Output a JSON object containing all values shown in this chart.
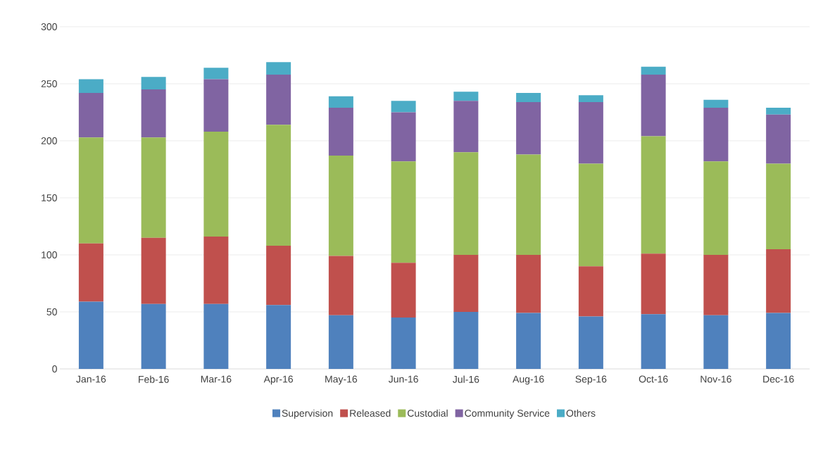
{
  "chart_data": {
    "type": "bar",
    "stacked": true,
    "categories": [
      "Jan-16",
      "Feb-16",
      "Mar-16",
      "Apr-16",
      "May-16",
      "Jun-16",
      "Jul-16",
      "Aug-16",
      "Sep-16",
      "Oct-16",
      "Nov-16",
      "Dec-16"
    ],
    "series": [
      {
        "name": "Supervision",
        "color": "#4f81bd",
        "values": [
          59,
          57,
          57,
          56,
          47,
          45,
          50,
          49,
          46,
          48,
          47,
          49
        ]
      },
      {
        "name": "Released",
        "color": "#c0504d",
        "values": [
          51,
          58,
          59,
          52,
          52,
          48,
          50,
          51,
          44,
          53,
          53,
          56
        ]
      },
      {
        "name": "Custodial",
        "color": "#9bbb59",
        "values": [
          93,
          88,
          92,
          106,
          88,
          89,
          90,
          88,
          90,
          103,
          82,
          75
        ]
      },
      {
        "name": "Community Service",
        "color": "#8064a2",
        "values": [
          39,
          42,
          46,
          44,
          42,
          43,
          45,
          46,
          54,
          54,
          47,
          43
        ]
      },
      {
        "name": "Others",
        "color": "#4bacc6",
        "values": [
          12,
          11,
          10,
          11,
          10,
          10,
          8,
          8,
          6,
          7,
          7,
          6
        ]
      }
    ],
    "ylim": [
      0,
      300
    ],
    "yticks": [
      0,
      50,
      100,
      150,
      200,
      250,
      300
    ],
    "grid": "y",
    "legend": "bottom"
  }
}
